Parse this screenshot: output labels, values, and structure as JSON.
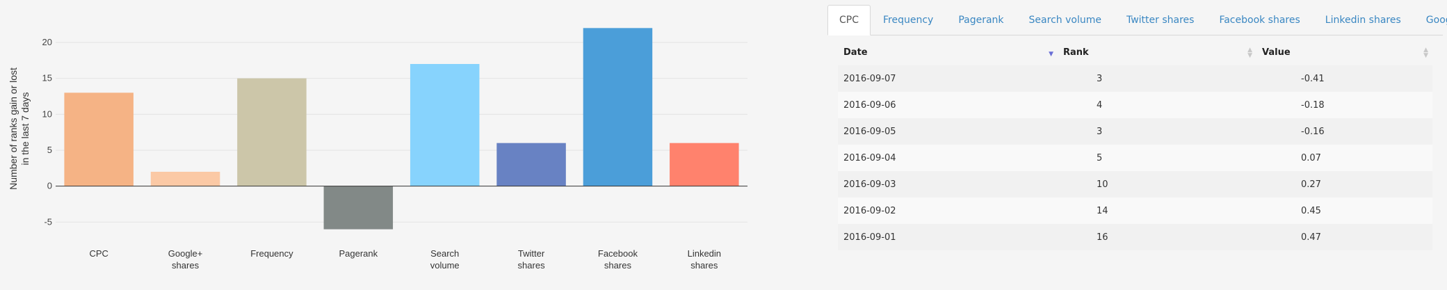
{
  "chart_data": {
    "type": "bar",
    "ylabel": "Number of ranks gain or lost in the last 7 days",
    "ylabel_lines": [
      "Number of ranks gain or lost",
      "in the last 7 days"
    ],
    "categories": [
      "CPC",
      "Google+ shares",
      "Frequency",
      "Pagerank",
      "Search volume",
      "Twitter shares",
      "Facebook shares",
      "Linkedin shares"
    ],
    "category_lines": [
      [
        "CPC"
      ],
      [
        "Google+",
        "shares"
      ],
      [
        "Frequency"
      ],
      [
        "Pagerank"
      ],
      [
        "Search",
        "volume"
      ],
      [
        "Twitter",
        "shares"
      ],
      [
        "Facebook",
        "shares"
      ],
      [
        "Linkedin",
        "shares"
      ]
    ],
    "values": [
      13,
      2,
      15,
      -6,
      17,
      6,
      22,
      6
    ],
    "colors": [
      "#f5b385",
      "#fbc9a5",
      "#ccc6a9",
      "#828987",
      "#87d3fd",
      "#6882c3",
      "#4b9ed9",
      "#ff826d"
    ],
    "yticks": [
      -5,
      0,
      5,
      10,
      15,
      20
    ],
    "ylim": [
      -7,
      23
    ],
    "grid": true
  },
  "tabs": [
    "CPC",
    "Frequency",
    "Pagerank",
    "Search volume",
    "Twitter shares",
    "Facebook shares",
    "Linkedin shares",
    "Google+ shares"
  ],
  "active_tab": "CPC",
  "table": {
    "headers": {
      "date": "Date",
      "rank": "Rank",
      "value": "Value"
    },
    "rows": [
      {
        "date": "2016-09-07",
        "rank": "3",
        "value": "-0.41"
      },
      {
        "date": "2016-09-06",
        "rank": "4",
        "value": "-0.18"
      },
      {
        "date": "2016-09-05",
        "rank": "3",
        "value": "-0.16"
      },
      {
        "date": "2016-09-04",
        "rank": "5",
        "value": "0.07"
      },
      {
        "date": "2016-09-03",
        "rank": "10",
        "value": "0.27"
      },
      {
        "date": "2016-09-02",
        "rank": "14",
        "value": "0.45"
      },
      {
        "date": "2016-09-01",
        "rank": "16",
        "value": "0.47"
      }
    ]
  }
}
